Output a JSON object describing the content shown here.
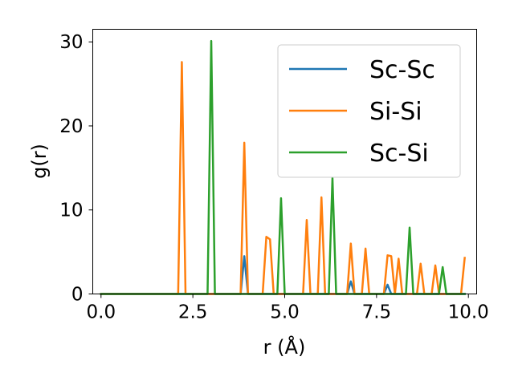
{
  "chart_data": {
    "type": "line",
    "xlabel": "r (Å)",
    "ylabel": "g(r)",
    "xlim": [
      -0.225,
      10.225
    ],
    "ylim": [
      0,
      31.5
    ],
    "xticks": [
      0.0,
      2.5,
      5.0,
      7.5,
      10.0
    ],
    "xtick_labels": [
      "0.0",
      "2.5",
      "5.0",
      "7.5",
      "10.0"
    ],
    "yticks": [
      0,
      10,
      20,
      30
    ],
    "ytick_labels": [
      "0",
      "10",
      "20",
      "30"
    ],
    "grid": false,
    "legend_position": "top-right",
    "series": [
      {
        "name": "Sc-Sc",
        "color": "#1f77b4",
        "points": [
          [
            0,
            0
          ],
          [
            3.8,
            0
          ],
          [
            3.9,
            4.5
          ],
          [
            4.0,
            0
          ],
          [
            6.7,
            0
          ],
          [
            6.8,
            1.5
          ],
          [
            6.9,
            0
          ],
          [
            7.7,
            0
          ],
          [
            7.8,
            1.1
          ],
          [
            7.9,
            0
          ],
          [
            9.9,
            0
          ]
        ]
      },
      {
        "name": "Si-Si",
        "color": "#ff7f0e",
        "points": [
          [
            0,
            0
          ],
          [
            2.1,
            0
          ],
          [
            2.2,
            27.6
          ],
          [
            2.3,
            0
          ],
          [
            3.8,
            0
          ],
          [
            3.9,
            18.0
          ],
          [
            4.0,
            0
          ],
          [
            4.4,
            0
          ],
          [
            4.5,
            6.8
          ],
          [
            4.6,
            6.5
          ],
          [
            4.7,
            0
          ],
          [
            5.5,
            0
          ],
          [
            5.6,
            8.8
          ],
          [
            5.7,
            0
          ],
          [
            5.9,
            0
          ],
          [
            6.0,
            11.5
          ],
          [
            6.1,
            0
          ],
          [
            6.7,
            0
          ],
          [
            6.8,
            6.0
          ],
          [
            6.9,
            0
          ],
          [
            7.1,
            0
          ],
          [
            7.2,
            5.4
          ],
          [
            7.3,
            0
          ],
          [
            7.7,
            0
          ],
          [
            7.8,
            4.6
          ],
          [
            7.9,
            4.5
          ],
          [
            8.0,
            0
          ],
          [
            8.1,
            4.2
          ],
          [
            8.2,
            0
          ],
          [
            8.6,
            0
          ],
          [
            8.7,
            3.6
          ],
          [
            8.8,
            0
          ],
          [
            9.0,
            0
          ],
          [
            9.1,
            3.4
          ],
          [
            9.2,
            0
          ],
          [
            9.8,
            0
          ],
          [
            9.9,
            4.3
          ]
        ]
      },
      {
        "name": "Sc-Si",
        "color": "#2ca02c",
        "points": [
          [
            0,
            0
          ],
          [
            2.9,
            0
          ],
          [
            3.0,
            30.1
          ],
          [
            3.1,
            0
          ],
          [
            4.8,
            0
          ],
          [
            4.9,
            11.4
          ],
          [
            5.0,
            0
          ],
          [
            6.2,
            0
          ],
          [
            6.3,
            13.8
          ],
          [
            6.4,
            0
          ],
          [
            8.3,
            0
          ],
          [
            8.4,
            7.9
          ],
          [
            8.5,
            0
          ],
          [
            9.2,
            0
          ],
          [
            9.3,
            3.2
          ],
          [
            9.4,
            0
          ],
          [
            9.9,
            0
          ]
        ]
      }
    ]
  }
}
